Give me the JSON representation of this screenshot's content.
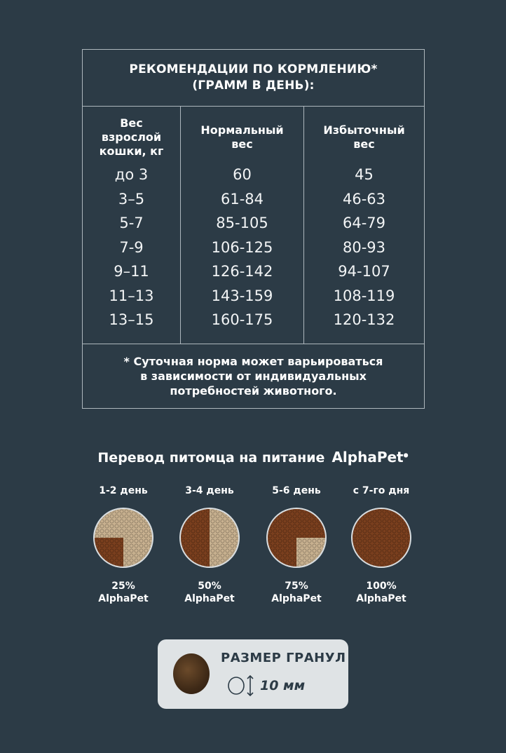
{
  "table": {
    "title_line1": "РЕКОМЕНДАЦИИ ПО КОРМЛЕНИЮ*",
    "title_line2": "(ГРАММ В ДЕНЬ):",
    "col1_head": [
      "Вес",
      "взрослой",
      "кошки, кг"
    ],
    "col2_head": [
      "Нормальный",
      "вес"
    ],
    "col3_head": [
      "Избыточный",
      "вес"
    ],
    "rows": [
      [
        "до 3",
        "60",
        "45"
      ],
      [
        "3–5",
        "61-84",
        "46-63"
      ],
      [
        "5-7",
        "85-105",
        "64-79"
      ],
      [
        "7-9",
        "106-125",
        "80-93"
      ],
      [
        "9–11",
        "126-142",
        "94-107"
      ],
      [
        "11–13",
        "143-159",
        "108-119"
      ],
      [
        "13–15",
        "160-175",
        "120-132"
      ]
    ],
    "footnote_line1": "* Суточная норма может варьироваться",
    "footnote_line2": "в зависимости от индивидуальных",
    "footnote_line3": "потребностей животного."
  },
  "transition": {
    "title": "Перевод питомца на питание",
    "brand": "AlphaPet",
    "stages": [
      {
        "label": "1-2 день",
        "pct": "25%",
        "brand": "AlphaPet",
        "fraction": 0.25
      },
      {
        "label": "3-4 день",
        "pct": "50%",
        "brand": "AlphaPet",
        "fraction": 0.5
      },
      {
        "label": "5-6 день",
        "pct": "75%",
        "brand": "AlphaPet",
        "fraction": 0.75
      },
      {
        "label": "с 7-го дня",
        "pct": "100%",
        "brand": "AlphaPet",
        "fraction": 1.0
      }
    ]
  },
  "granule": {
    "title": "РАЗМЕР ГРАНУЛ",
    "size": "10 мм"
  },
  "colors": {
    "background": "#2c3b46",
    "border": "#aeb7bd",
    "panel": "#dfe3e5",
    "kibble_new": "#7a3f1e",
    "kibble_old": "#c7b08f"
  }
}
